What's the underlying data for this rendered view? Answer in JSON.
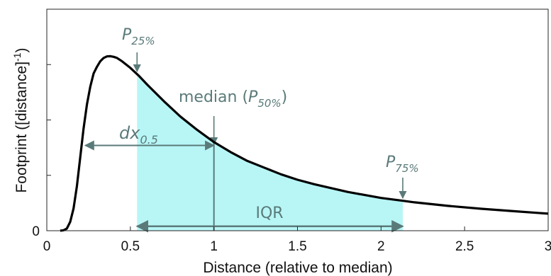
{
  "chart_data": {
    "type": "line",
    "xlabel": "Distance (relative to median)",
    "ylabel": "Footprint ([distance]",
    "ylabel_sup": "-1",
    "ylabel_tail": ")",
    "xlim": [
      0,
      3
    ],
    "ylim": [
      0,
      1
    ],
    "xticks": [
      "0",
      "0.5",
      "1",
      "1.5",
      "2",
      "2.5",
      "3"
    ],
    "xtick_values": [
      0,
      0.5,
      1,
      1.5,
      2,
      2.5,
      3
    ],
    "yticks": [
      "0"
    ],
    "ytick_marks": [
      0,
      0.25,
      0.5,
      0.75,
      1
    ],
    "series": [
      {
        "x": [
          0.08,
          0.1,
          0.12,
          0.14,
          0.16,
          0.18,
          0.2,
          0.22,
          0.24,
          0.26,
          0.28,
          0.3,
          0.32,
          0.34,
          0.36,
          0.38,
          0.4,
          0.42,
          0.45,
          0.5,
          0.55,
          0.6,
          0.7,
          0.8,
          0.9,
          1.0,
          1.1,
          1.2,
          1.3,
          1.4,
          1.5,
          1.6,
          1.8,
          2.0,
          2.13,
          2.2,
          2.4,
          2.6,
          2.8,
          3.0
        ],
        "y": [
          0.0,
          0.002,
          0.01,
          0.04,
          0.1,
          0.2,
          0.33,
          0.46,
          0.57,
          0.65,
          0.71,
          0.74,
          0.765,
          0.78,
          0.787,
          0.788,
          0.785,
          0.78,
          0.765,
          0.735,
          0.7,
          0.66,
          0.585,
          0.515,
          0.455,
          0.4,
          0.355,
          0.315,
          0.285,
          0.255,
          0.23,
          0.21,
          0.175,
          0.148,
          0.135,
          0.128,
          0.112,
          0.099,
          0.088,
          0.077
        ]
      }
    ],
    "shaded_region": {
      "x_start": 0.54,
      "x_end": 2.13,
      "color": "#b8f6f6"
    },
    "median_line_x": 1.0,
    "dx_arrow": {
      "x_start": 0.23,
      "x_end": 1.0,
      "y": 0.385
    },
    "iqr_arrow": {
      "x_start": 0.54,
      "x_end": 2.13,
      "y": 0.02
    },
    "colors": {
      "curve": "#000000",
      "annotation": "#5a7a79",
      "shade": "#b8f6f6"
    }
  },
  "annotations": {
    "p25_main": "P",
    "p25_sub": "25%",
    "median_prefix": "median (",
    "median_p": "P",
    "median_sub": "50%",
    "median_suffix": ")",
    "dx_main": "dx",
    "dx_sub": "0.5",
    "p75_main": "P",
    "p75_sub": "75%",
    "iqr": "IQR"
  }
}
